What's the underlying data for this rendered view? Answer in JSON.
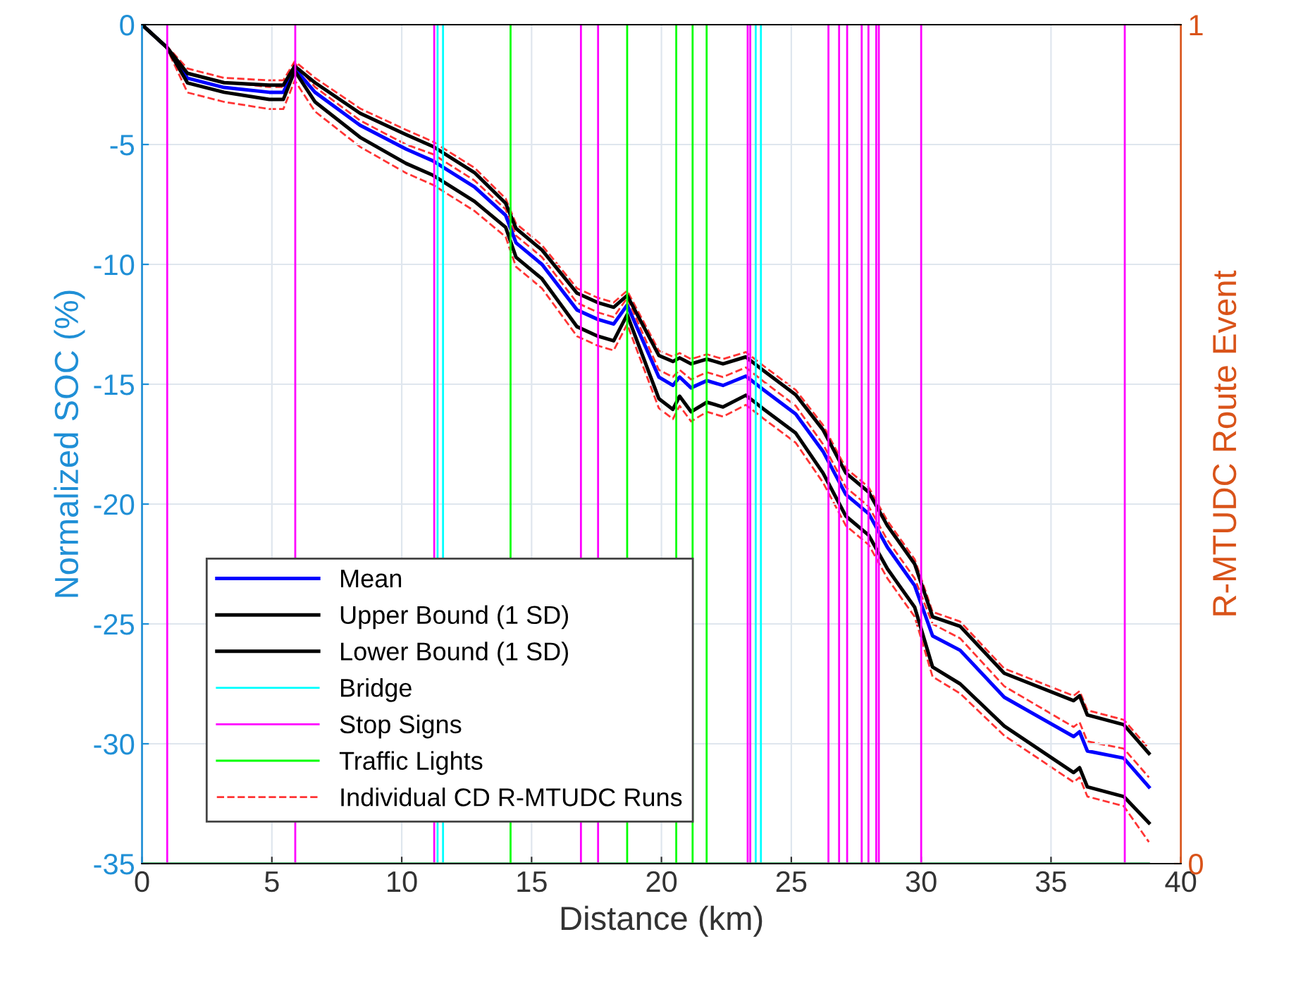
{
  "chart_data": {
    "type": "line",
    "xlabel": "Distance (km)",
    "ylabel": "Normalized SOC (%)",
    "y2label": "R-MTUDC Route Event",
    "xlim": [
      0,
      40
    ],
    "xticks": [
      0,
      5,
      10,
      15,
      20,
      25,
      30,
      35,
      40
    ],
    "ylim": [
      -35,
      0
    ],
    "yticks": [
      -35,
      -30,
      -25,
      -20,
      -15,
      -10,
      -5,
      0
    ],
    "y2lim": [
      0,
      1
    ],
    "y2ticks": [
      0,
      1
    ],
    "grid": true,
    "legend": "bottom left",
    "marker": "none",
    "x": [
      0,
      0.96,
      1.75,
      3.16,
      4.9,
      5.44,
      5.88,
      6.66,
      8.4,
      10.17,
      11.2,
      12.8,
      14.0,
      14.4,
      15.4,
      16.75,
      17.54,
      18.16,
      18.68,
      19.9,
      20.44,
      20.7,
      21.14,
      21.75,
      22.37,
      23.25,
      23.95,
      25.17,
      26.22,
      27.1,
      27.98,
      28.7,
      29.75,
      30.44,
      31.5,
      33.2,
      35.87,
      36.1,
      36.4,
      37.8,
      38.77
    ],
    "series": [
      {
        "name": "Mean",
        "color": "#0000ff",
        "values": [
          0,
          -0.95,
          -2.23,
          -2.62,
          -2.82,
          -2.82,
          -1.83,
          -2.82,
          -4.2,
          -5.19,
          -5.68,
          -6.77,
          -7.95,
          -9.1,
          -10.0,
          -11.9,
          -12.29,
          -12.49,
          -11.7,
          -14.7,
          -15.05,
          -14.7,
          -15.15,
          -14.85,
          -15.05,
          -14.66,
          -15.25,
          -16.24,
          -17.8,
          -19.6,
          -20.4,
          -21.8,
          -23.4,
          -25.5,
          -26.1,
          -28.06,
          -29.7,
          -29.5,
          -30.3,
          -30.6,
          -31.8
        ]
      },
      {
        "name": "Upper Bound (1 SD)",
        "color": "#000000",
        "values": [
          0,
          -0.95,
          -2.03,
          -2.42,
          -2.52,
          -2.52,
          -1.73,
          -2.42,
          -3.7,
          -4.59,
          -5.08,
          -6.17,
          -7.45,
          -8.5,
          -9.4,
          -11.2,
          -11.59,
          -11.79,
          -11.3,
          -13.8,
          -14.05,
          -13.9,
          -14.15,
          -13.95,
          -14.15,
          -13.86,
          -14.45,
          -15.44,
          -16.9,
          -18.7,
          -19.5,
          -20.9,
          -22.5,
          -24.7,
          -25.1,
          -27.06,
          -28.2,
          -28.0,
          -28.8,
          -29.2,
          -30.4
        ]
      },
      {
        "name": "Lower Bound (1 SD)",
        "color": "#000000",
        "values": [
          0,
          -0.95,
          -2.43,
          -2.82,
          -3.12,
          -3.12,
          -1.93,
          -3.22,
          -4.7,
          -5.79,
          -6.28,
          -7.37,
          -8.45,
          -9.7,
          -10.6,
          -12.6,
          -12.99,
          -13.19,
          -12.1,
          -15.6,
          -16.05,
          -15.5,
          -16.15,
          -15.75,
          -15.95,
          -15.46,
          -16.05,
          -17.04,
          -18.7,
          -20.5,
          -21.3,
          -22.7,
          -24.3,
          -26.8,
          -27.5,
          -29.26,
          -31.2,
          -31.0,
          -31.8,
          -32.2,
          -33.3
        ]
      },
      {
        "name": "Bridge",
        "color": "#00ffff",
        "axis": "y2",
        "x": [
          0,
          11.38,
          11.38,
          11.38,
          11.59,
          11.59,
          11.59,
          23.63,
          23.63,
          23.63,
          23.83,
          23.83,
          23.83,
          38.77
        ],
        "values": [
          0,
          0,
          1,
          0,
          0,
          1,
          0,
          0,
          1,
          0,
          0,
          1,
          0,
          0
        ]
      },
      {
        "name": "Stop Signs",
        "color": "#ff00ff",
        "axis": "y2",
        "x": [
          0,
          0.97,
          0.97,
          0.97,
          5.9,
          5.9,
          5.9,
          11.25,
          11.25,
          11.25,
          16.9,
          16.9,
          16.9,
          17.56,
          17.56,
          17.56,
          23.32,
          23.32,
          23.32,
          23.42,
          23.42,
          23.42,
          26.43,
          26.43,
          26.43,
          26.84,
          26.84,
          26.84,
          27.15,
          27.15,
          27.15,
          27.71,
          27.71,
          27.71,
          27.97,
          27.97,
          27.97,
          28.27,
          28.27,
          28.27,
          28.37,
          28.37,
          28.37,
          30.0,
          30.0,
          30.0,
          37.84,
          37.84,
          37.84,
          38.77
        ],
        "values": [
          0,
          0,
          1,
          0,
          0,
          1,
          0,
          0,
          1,
          0,
          0,
          1,
          0,
          0,
          1,
          0,
          0,
          1,
          0,
          0,
          1,
          0,
          0,
          1,
          0,
          0,
          1,
          0,
          0,
          1,
          0,
          0,
          1,
          0,
          0,
          1,
          0,
          0,
          1,
          0,
          0,
          1,
          0,
          0,
          1,
          0,
          0,
          1,
          0,
          0
        ]
      },
      {
        "name": "Traffic Lights",
        "color": "#00ff00",
        "axis": "y2",
        "x": [
          0,
          14.19,
          14.19,
          14.19,
          18.68,
          18.68,
          18.68,
          20.57,
          20.57,
          20.57,
          21.2,
          21.2,
          21.2,
          21.74,
          21.74,
          21.74,
          38.77
        ],
        "values": [
          0,
          0,
          1,
          0,
          0,
          1,
          0,
          0,
          1,
          0,
          0,
          1,
          0,
          0,
          1,
          0,
          0
        ]
      },
      {
        "name": "Individual CD R-MTUDC Runs",
        "color": "#ff0000",
        "line_style": "dashed",
        "values": [
          0,
          -0.9,
          -1.83,
          -2.22,
          -2.32,
          -2.32,
          -1.53,
          -2.22,
          -3.5,
          -4.39,
          -4.88,
          -5.97,
          -7.25,
          -8.3,
          -9.2,
          -11.0,
          -11.39,
          -11.59,
          -11.1,
          -13.6,
          -13.85,
          -13.7,
          -13.95,
          -13.75,
          -13.95,
          -13.66,
          -14.25,
          -15.24,
          -16.7,
          -18.5,
          -19.3,
          -20.7,
          -22.3,
          -24.5,
          -24.9,
          -26.86,
          -28.0,
          -27.8,
          -28.6,
          -29.0,
          -30.2
        ]
      },
      {
        "color": "#ff0000",
        "line_style": "dashed",
        "values": [
          0,
          -0.95,
          -2.0,
          -2.4,
          -2.6,
          -2.6,
          -1.6,
          -2.6,
          -4.0,
          -5.0,
          -5.4,
          -6.5,
          -7.7,
          -8.8,
          -9.7,
          -11.6,
          -12.0,
          -12.2,
          -11.4,
          -14.4,
          -14.7,
          -14.4,
          -14.8,
          -14.5,
          -14.7,
          -14.3,
          -14.9,
          -15.9,
          -17.5,
          -19.3,
          -20.1,
          -21.5,
          -23.1,
          -25.0,
          -25.6,
          -27.6,
          -29.3,
          -29.1,
          -29.9,
          -30.2,
          -31.4
        ]
      },
      {
        "color": "#ff0000",
        "line_style": "dashed",
        "values": [
          0,
          -1.0,
          -2.83,
          -3.22,
          -3.52,
          -3.52,
          -2.33,
          -3.62,
          -5.1,
          -6.19,
          -6.68,
          -7.77,
          -8.85,
          -10.1,
          -11.0,
          -13.0,
          -13.39,
          -13.59,
          -12.5,
          -16.0,
          -16.45,
          -15.9,
          -16.55,
          -16.15,
          -16.35,
          -15.86,
          -16.45,
          -17.44,
          -19.1,
          -20.9,
          -21.7,
          -23.1,
          -24.7,
          -27.2,
          -27.9,
          -29.66,
          -31.6,
          -31.4,
          -32.2,
          -32.6,
          -34.1
        ]
      }
    ]
  }
}
